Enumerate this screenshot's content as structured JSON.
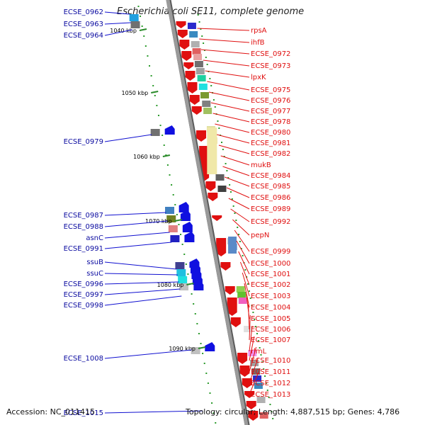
{
  "title": "Escherichia coli SE11, complete genome",
  "footer": {
    "accession": "Accession: NC_011415",
    "topology": "Topology: circular; Length: 4,887,515 bp; Genes: 4,786"
  },
  "scale_labels": [
    "1040 kbp",
    "1050 kbp",
    "1060 kbp",
    "1070 kbp",
    "1080 kbp",
    "1090 kbp"
  ],
  "left_labels": [
    "ECSE_0962",
    "ECSE_0963",
    "ECSE_0964",
    "ECSE_0979",
    "ECSE_0987",
    "ECSE_0988",
    "asnC",
    "ECSE_0991",
    "ssuB",
    "ssuC",
    "ECSE_0996",
    "ECSE_0997",
    "ECSE_0998",
    "ECSE_1008",
    "ECSE_1015"
  ],
  "right_labels": [
    "rpsA",
    "ihfB",
    "ECSE_0972",
    "ECSE_0973",
    "lpxK",
    "ECSE_0975",
    "ECSE_0976",
    "ECSE_0977",
    "ECSE_0978",
    "ECSE_0980",
    "ECSE_0981",
    "ECSE_0982",
    "mukB",
    "ECSE_0984",
    "ECSE_0985",
    "ECSE_0986",
    "ECSE_0989",
    "ECSE_0992",
    "pepN",
    "ECSE_0999",
    "ECSE_1000",
    "ECSE_1001",
    "ECSE_1002",
    "ECSE_1003",
    "ECSE_1004",
    "ECSE_1005",
    "ECSE_1006",
    "ECSE_1007",
    "rlmL",
    "ECSE_1010",
    "ECSE_1011",
    "ECSE_1012",
    "ECSE_1013"
  ],
  "colors": {
    "forward_gene": "#e01010",
    "reverse_gene": "#1010e0",
    "left_label": "#0a0aa0",
    "right_label": "#e01010",
    "backbone": "#9a9a9a",
    "scale_tick": "#2a8a2a"
  }
}
